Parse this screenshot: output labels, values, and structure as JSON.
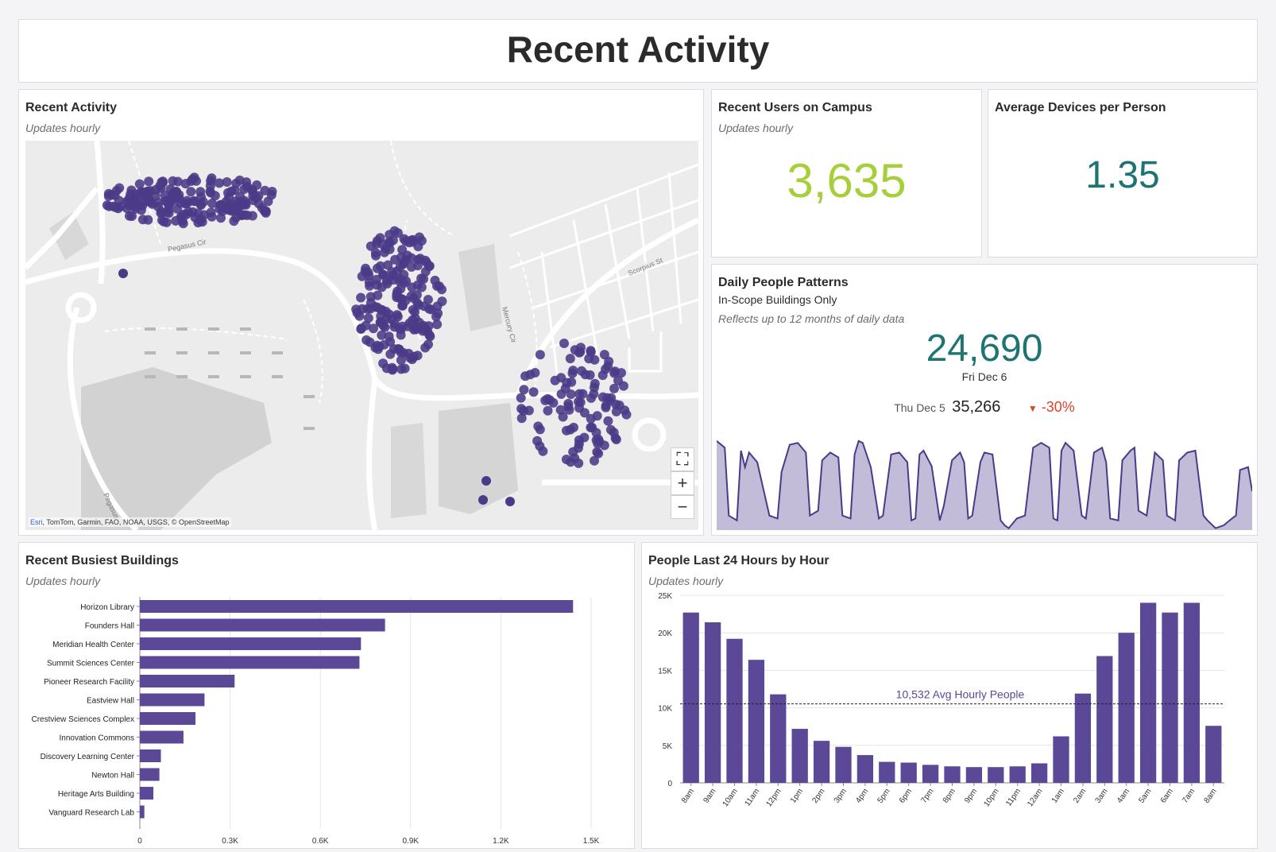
{
  "header": {
    "title": "Recent Activity"
  },
  "map_panel": {
    "title": "Recent Activity",
    "subtitle": "Updates hourly",
    "attribution_esri": "Esri",
    "attribution_rest": ", TomTom, Garmin, FAO, NOAA, USGS, © OpenStreetMap",
    "street_labels": [
      "Pegasus Cir",
      "Scorpius St",
      "Mercury Cir",
      "Pegasus"
    ],
    "controls": {
      "home": "⛶",
      "zoom_in": "+",
      "zoom_out": "−"
    },
    "colors": {
      "point": "#4b3a87",
      "background": "#ececec"
    }
  },
  "users_panel": {
    "title": "Recent Users on Campus",
    "subtitle": "Updates hourly",
    "value": "3,635",
    "color": "#a6cf3b"
  },
  "devices_panel": {
    "title": "Average Devices per Person",
    "value": "1.35",
    "color": "#1e7373"
  },
  "patterns_panel": {
    "title": "Daily People Patterns",
    "subtitle": "In-Scope Buildings Only",
    "note": "Reflects up to 12 months of daily data",
    "value": "24,690",
    "value_date": "Fri Dec 6",
    "compare_date": "Thu Dec 5",
    "compare_value": "35,266",
    "change": "-30%",
    "change_icon": "triangle-down-icon",
    "colors": {
      "value": "#1e7373",
      "change": "#d9442b",
      "area": "#c3bcd9",
      "line": "#4b3a87"
    },
    "sparkline": [
      [
        0,
        0.92
      ],
      [
        2,
        0.85
      ],
      [
        3,
        0.15
      ],
      [
        5,
        0.1
      ],
      [
        6,
        0.82
      ],
      [
        7,
        0.65
      ],
      [
        8,
        0.8
      ],
      [
        10,
        0.7
      ],
      [
        13,
        0.15
      ],
      [
        15,
        0.12
      ],
      [
        16,
        0.6
      ],
      [
        18,
        0.88
      ],
      [
        20,
        0.9
      ],
      [
        22,
        0.8
      ],
      [
        23,
        0.15
      ],
      [
        25,
        0.2
      ],
      [
        26,
        0.72
      ],
      [
        28,
        0.8
      ],
      [
        30,
        0.75
      ],
      [
        31,
        0.15
      ],
      [
        33,
        0.12
      ],
      [
        34,
        0.78
      ],
      [
        35,
        0.92
      ],
      [
        36,
        0.9
      ],
      [
        38,
        0.65
      ],
      [
        40,
        0.12
      ],
      [
        41,
        0.15
      ],
      [
        43,
        0.78
      ],
      [
        45,
        0.8
      ],
      [
        47,
        0.7
      ],
      [
        48,
        0.1
      ],
      [
        49,
        0.12
      ],
      [
        50,
        0.78
      ],
      [
        51,
        0.82
      ],
      [
        53,
        0.66
      ],
      [
        55,
        0.1
      ],
      [
        56,
        0.25
      ],
      [
        58,
        0.72
      ],
      [
        60,
        0.8
      ],
      [
        61,
        0.7
      ],
      [
        62,
        0.12
      ],
      [
        63,
        0.15
      ],
      [
        65,
        0.7
      ],
      [
        66,
        0.8
      ],
      [
        68,
        0.78
      ],
      [
        70,
        0.1
      ],
      [
        71,
        0.05
      ],
      [
        72,
        0.02
      ],
      [
        74,
        0.12
      ],
      [
        76,
        0.15
      ],
      [
        78,
        0.85
      ],
      [
        80,
        0.9
      ],
      [
        82,
        0.85
      ],
      [
        83,
        0.12
      ],
      [
        84,
        0.1
      ],
      [
        85,
        0.82
      ],
      [
        86,
        0.9
      ],
      [
        88,
        0.82
      ],
      [
        90,
        0.15
      ],
      [
        91,
        0.12
      ],
      [
        93,
        0.8
      ],
      [
        95,
        0.85
      ],
      [
        96,
        0.7
      ],
      [
        97,
        0.12
      ],
      [
        99,
        0.1
      ],
      [
        100,
        0.72
      ],
      [
        102,
        0.82
      ],
      [
        103,
        0.85
      ],
      [
        104,
        0.2
      ],
      [
        106,
        0.15
      ],
      [
        108,
        0.8
      ],
      [
        110,
        0.72
      ],
      [
        111,
        0.15
      ],
      [
        113,
        0.1
      ],
      [
        114,
        0.72
      ],
      [
        116,
        0.8
      ],
      [
        118,
        0.82
      ],
      [
        120,
        0.15
      ],
      [
        121,
        0.1
      ],
      [
        123,
        0.02
      ],
      [
        125,
        0.05
      ],
      [
        127,
        0.12
      ],
      [
        128,
        0.15
      ],
      [
        129,
        0.62
      ],
      [
        131,
        0.65
      ],
      [
        132,
        0.4
      ]
    ]
  },
  "busiest_panel": {
    "title": "Recent Busiest Buildings",
    "subtitle": "Updates hourly",
    "chart_data": {
      "type": "bar",
      "orientation": "horizontal",
      "categories": [
        "Horizon Library",
        "Founders Hall",
        "Meridian Health Center",
        "Summit Sciences Center",
        "Pioneer Research Facility",
        "Eastview Hall",
        "Crestview Sciences Complex",
        "Innovation Commons",
        "Discovery Learning Center",
        "Newton Hall",
        "Heritage Arts Building",
        "Vanguard Research Lab"
      ],
      "values": [
        1440,
        815,
        735,
        730,
        315,
        215,
        185,
        145,
        70,
        65,
        45,
        15
      ],
      "xlim": [
        0,
        1500
      ],
      "ticks": [
        0,
        300,
        600,
        900,
        1200,
        1500
      ],
      "tick_labels": [
        "0",
        "0.3K",
        "0.6K",
        "0.9K",
        "1.2K",
        "1.5K"
      ],
      "color": "#5b4896"
    }
  },
  "hourly_panel": {
    "title": "People Last 24 Hours by Hour",
    "subtitle": "Updates hourly",
    "chart_data": {
      "type": "bar",
      "categories": [
        "8am",
        "9am",
        "10am",
        "11am",
        "12pm",
        "1pm",
        "2pm",
        "3pm",
        "4pm",
        "5pm",
        "6pm",
        "7pm",
        "8pm",
        "9pm",
        "10pm",
        "11pm",
        "12am",
        "1am",
        "2am",
        "3am",
        "4am",
        "5am",
        "6am",
        "7am",
        "8am"
      ],
      "values": [
        22700,
        21400,
        19200,
        16400,
        11800,
        7200,
        5600,
        4800,
        3700,
        2800,
        2700,
        2400,
        2200,
        2100,
        2100,
        2200,
        2600,
        6200,
        11900,
        16900,
        20000,
        24000,
        22700,
        24000,
        7600
      ],
      "ylim": [
        0,
        25000
      ],
      "yticks": [
        0,
        5000,
        10000,
        15000,
        20000,
        25000
      ],
      "ytick_labels": [
        "0",
        "5K",
        "10K",
        "15K",
        "20K",
        "25K"
      ],
      "reference_line": {
        "value": 10532,
        "label_value": "10,532",
        "label_text": "Avg Hourly People"
      },
      "color": "#5b4896"
    }
  }
}
